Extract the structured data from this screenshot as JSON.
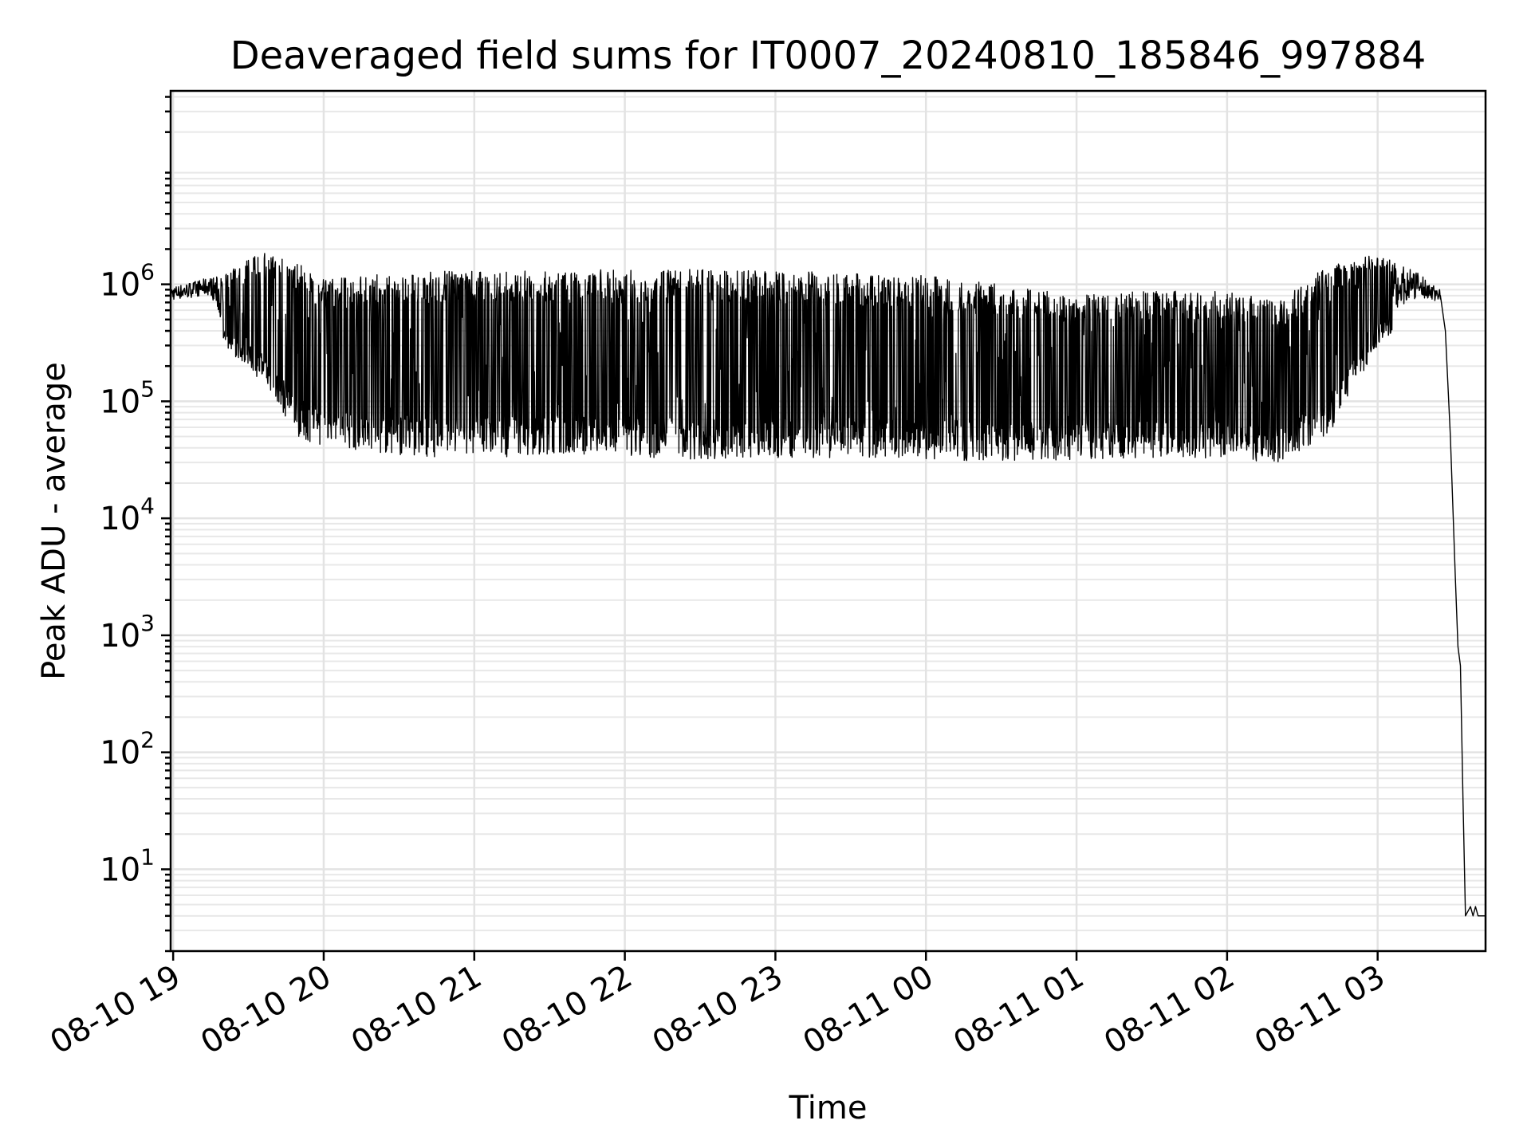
{
  "chart_data": {
    "type": "line",
    "title": "Deaveraged field sums for IT0007_20240810_185846_997884",
    "xlabel": "Time",
    "ylabel": "Peak ADU - average",
    "yscale": "log",
    "grid": "on (major and minor)",
    "legend": "none",
    "line_color": "#000000",
    "xlim": [
      "2024-08-10 18:59",
      "2024-08-11 03:43"
    ],
    "ylim": [
      2,
      45000000
    ],
    "x_ticks": [
      {
        "t": "2024-08-10 19:00",
        "label": "08-10 19"
      },
      {
        "t": "2024-08-10 20:00",
        "label": "08-10 20"
      },
      {
        "t": "2024-08-10 21:00",
        "label": "08-10 21"
      },
      {
        "t": "2024-08-10 22:00",
        "label": "08-10 22"
      },
      {
        "t": "2024-08-10 23:00",
        "label": "08-10 23"
      },
      {
        "t": "2024-08-11 00:00",
        "label": "08-11 00"
      },
      {
        "t": "2024-08-11 01:00",
        "label": "08-11 01"
      },
      {
        "t": "2024-08-11 02:00",
        "label": "08-11 02"
      },
      {
        "t": "2024-08-11 03:00",
        "label": "08-11 03"
      }
    ],
    "y_ticks": [
      {
        "value": 10,
        "base": "10",
        "exp": "1"
      },
      {
        "value": 100,
        "base": "10",
        "exp": "2"
      },
      {
        "value": 1000,
        "base": "10",
        "exp": "3"
      },
      {
        "value": 10000,
        "base": "10",
        "exp": "4"
      },
      {
        "value": 100000,
        "base": "10",
        "exp": "5"
      },
      {
        "value": 1000000,
        "base": "10",
        "exp": "6"
      }
    ],
    "series": [
      {
        "envelope": [
          {
            "t": "2024-08-10 18:59",
            "low": 650000,
            "high": 950000
          },
          {
            "t": "2024-08-10 19:15",
            "low": 700000,
            "high": 1150000
          },
          {
            "t": "2024-08-10 19:20",
            "low": 300000,
            "high": 1200000
          },
          {
            "t": "2024-08-10 19:35",
            "low": 150000,
            "high": 1900000
          },
          {
            "t": "2024-08-10 19:50",
            "low": 50000,
            "high": 1500000
          },
          {
            "t": "2024-08-10 20:00",
            "low": 40000,
            "high": 1100000
          },
          {
            "t": "2024-08-10 20:30",
            "low": 35000,
            "high": 1300000
          },
          {
            "t": "2024-08-10 21:00",
            "low": 32000,
            "high": 1300000
          },
          {
            "t": "2024-08-10 21:30",
            "low": 35000,
            "high": 1300000
          },
          {
            "t": "2024-08-10 22:00",
            "low": 33000,
            "high": 1350000
          },
          {
            "t": "2024-08-10 22:30",
            "low": 32000,
            "high": 1350000
          },
          {
            "t": "2024-08-10 23:00",
            "low": 33000,
            "high": 1300000
          },
          {
            "t": "2024-08-10 23:30",
            "low": 33000,
            "high": 1250000
          },
          {
            "t": "2024-08-11 00:00",
            "low": 32000,
            "high": 1200000
          },
          {
            "t": "2024-08-11 00:30",
            "low": 30000,
            "high": 1000000
          },
          {
            "t": "2024-08-11 01:00",
            "low": 32000,
            "high": 800000
          },
          {
            "t": "2024-08-11 01:30",
            "low": 33000,
            "high": 900000
          },
          {
            "t": "2024-08-11 02:00",
            "low": 32000,
            "high": 900000
          },
          {
            "t": "2024-08-11 02:20",
            "low": 30000,
            "high": 700000
          },
          {
            "t": "2024-08-11 02:40",
            "low": 50000,
            "high": 1500000
          },
          {
            "t": "2024-08-11 03:00",
            "low": 300000,
            "high": 1800000
          },
          {
            "t": "2024-08-11 03:15",
            "low": 600000,
            "high": 1300000
          },
          {
            "t": "2024-08-11 03:25",
            "low": 650000,
            "high": 900000
          }
        ],
        "tail": [
          {
            "t": "2024-08-11 03:25",
            "value": 800000
          },
          {
            "t": "2024-08-11 03:27",
            "value": 400000
          },
          {
            "t": "2024-08-11 03:29",
            "value": 50000
          },
          {
            "t": "2024-08-11 03:31",
            "value": 3000
          },
          {
            "t": "2024-08-11 03:32",
            "value": 800
          },
          {
            "t": "2024-08-11 03:33",
            "value": 550
          },
          {
            "t": "2024-08-11 03:34",
            "value": 40
          },
          {
            "t": "2024-08-11 03:35",
            "value": 4
          },
          {
            "t": "2024-08-11 03:37",
            "value": 4.8
          },
          {
            "t": "2024-08-11 03:38",
            "value": 4
          },
          {
            "t": "2024-08-11 03:39",
            "value": 4.8
          },
          {
            "t": "2024-08-11 03:40",
            "value": 4
          },
          {
            "t": "2024-08-11 03:43",
            "value": 4
          }
        ]
      }
    ]
  }
}
